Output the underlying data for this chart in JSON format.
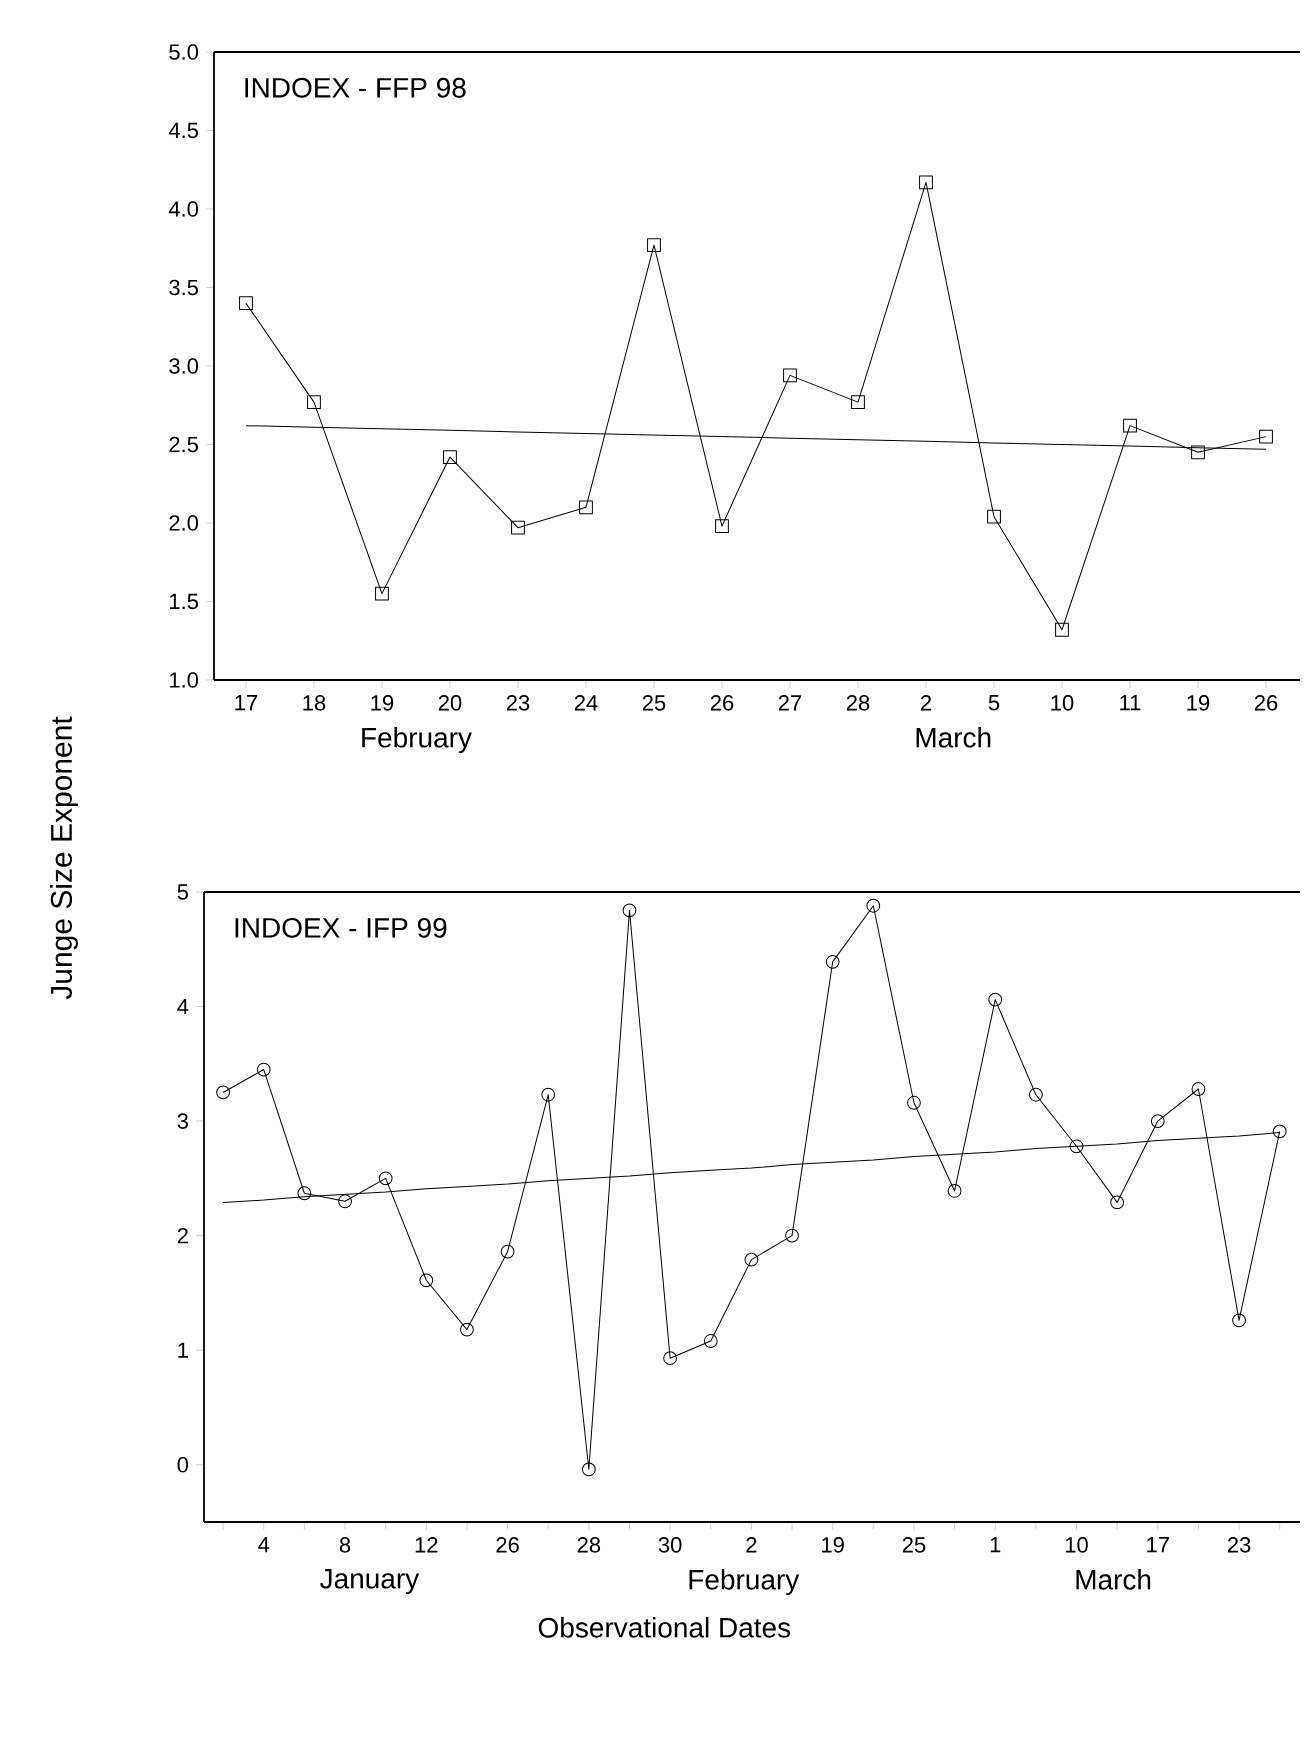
{
  "chart_data": [
    {
      "type": "line",
      "title": "INDOEX - FFP 98",
      "ylabel": "Junge Size Exponent",
      "categories": [
        "17",
        "18",
        "19",
        "20",
        "23",
        "24",
        "25",
        "26",
        "27",
        "28",
        "2",
        "5",
        "10",
        "11",
        "19",
        "26"
      ],
      "series": [
        {
          "color": "#000000",
          "marker": "square",
          "values": [
            3.4,
            2.77,
            1.55,
            2.42,
            1.97,
            2.1,
            3.77,
            1.98,
            2.94,
            2.77,
            4.17,
            2.04,
            1.32,
            2.62,
            2.45,
            2.55
          ]
        },
        {
          "type": "line",
          "color": "#000000",
          "marker": "none",
          "values": [
            2.62,
            2.61,
            2.6,
            2.59,
            2.58,
            2.57,
            2.56,
            2.55,
            2.54,
            2.53,
            2.52,
            2.51,
            2.5,
            2.49,
            2.48,
            2.47
          ]
        }
      ],
      "ylim": [
        1,
        5
      ],
      "yticks": [
        {
          "value": 1,
          "label": "1.0"
        },
        {
          "value": 1.5,
          "label": "1.5"
        },
        {
          "value": 2,
          "label": "2.0"
        },
        {
          "value": 2.5,
          "label": "2.5"
        },
        {
          "value": 3,
          "label": "3.0"
        },
        {
          "value": 3.5,
          "label": "3.5"
        },
        {
          "value": 4,
          "label": "4.0"
        },
        {
          "value": 4.5,
          "label": "4.5"
        },
        {
          "value": 5,
          "label": "5.0"
        }
      ],
      "annotations": [
        "February",
        "March"
      ]
    },
    {
      "type": "line",
      "title": "INDOEX - IFP 99",
      "xlabel": "Observational Dates",
      "categories": [
        null,
        "4",
        null,
        "8",
        null,
        "12",
        null,
        "26",
        null,
        "28",
        null,
        "30",
        null,
        "2",
        null,
        "19",
        null,
        "25",
        null,
        "1",
        null,
        "10",
        null,
        "17",
        null,
        "23",
        null
      ],
      "series": [
        {
          "color": "#000000",
          "marker": "circle",
          "values": [
            3.25,
            3.45,
            2.37,
            2.3,
            2.5,
            1.61,
            1.18,
            1.86,
            3.23,
            -0.04,
            4.84,
            0.93,
            1.08,
            1.79,
            2.0,
            4.39,
            4.88,
            3.16,
            2.39,
            4.06,
            3.23,
            2.78,
            2.29,
            3.0,
            3.28,
            1.26,
            2.91
          ]
        },
        {
          "type": "line",
          "color": "#000000",
          "marker": "none",
          "values": [
            2.29,
            2.31,
            2.34,
            2.36,
            2.38,
            2.41,
            2.43,
            2.45,
            2.48,
            2.5,
            2.52,
            2.55,
            2.57,
            2.59,
            2.62,
            2.64,
            2.66,
            2.69,
            2.71,
            2.73,
            2.76,
            2.78,
            2.8,
            2.83,
            2.85,
            2.87,
            2.9
          ]
        }
      ],
      "ylim": [
        -0.5,
        5
      ],
      "yticks": [
        0,
        1,
        2,
        3,
        4,
        5
      ],
      "annotations": [
        "January",
        "February",
        "March"
      ]
    }
  ]
}
